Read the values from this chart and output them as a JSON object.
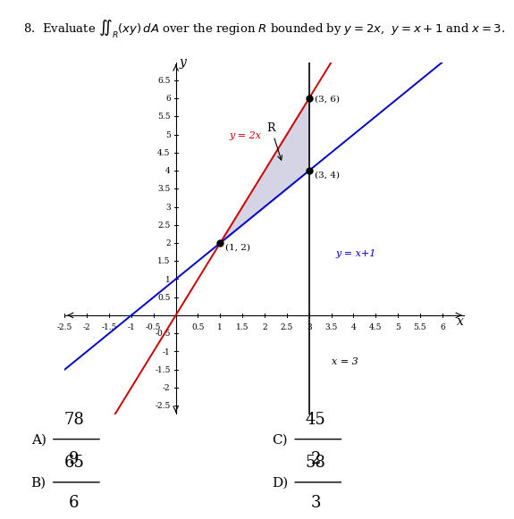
{
  "title_text": "8.  Evaluate $\\iint_{R}(xy)\\,dA$ over the region $R$ bounded by $y = 2x$,  $y = x+1$ and $x = 3$.",
  "xlim": [
    -2.5,
    6.5
  ],
  "ylim": [
    -2.75,
    7.0
  ],
  "xticks": [
    -2.5,
    -2,
    -1.5,
    -1,
    -0.5,
    0.5,
    1,
    1.5,
    2,
    2.5,
    3,
    3.5,
    4,
    4.5,
    5,
    5.5,
    6
  ],
  "yticks": [
    -2.5,
    -2,
    -1.5,
    -1,
    -0.5,
    0.5,
    1,
    1.5,
    2,
    2.5,
    3,
    3.5,
    4,
    4.5,
    5,
    5.5,
    6,
    6.5
  ],
  "line_y2x_color": "#cc0000",
  "line_yxp1_color": "#0000cc",
  "line_x3_color": "#000000",
  "region_color": "#aaaacc",
  "region_alpha": 0.5,
  "point_color": "#000000",
  "points": [
    [
      1,
      2
    ],
    [
      3,
      6
    ],
    [
      3,
      4
    ]
  ],
  "point_labels": [
    "(1, 2)",
    "(3, 6)",
    "(3, 4)"
  ],
  "label_y2x": "y = 2x",
  "label_yxp1": "y = x+1",
  "label_x3": "x = 3",
  "label_R": "R",
  "answers": [
    {
      "label": "A)",
      "num": "78",
      "den": "9"
    },
    {
      "label": "B)",
      "num": "65",
      "den": "6"
    },
    {
      "label": "C)",
      "num": "45",
      "den": "2"
    },
    {
      "label": "D)",
      "num": "58",
      "den": "3"
    }
  ],
  "bg_color": "#ffffff"
}
